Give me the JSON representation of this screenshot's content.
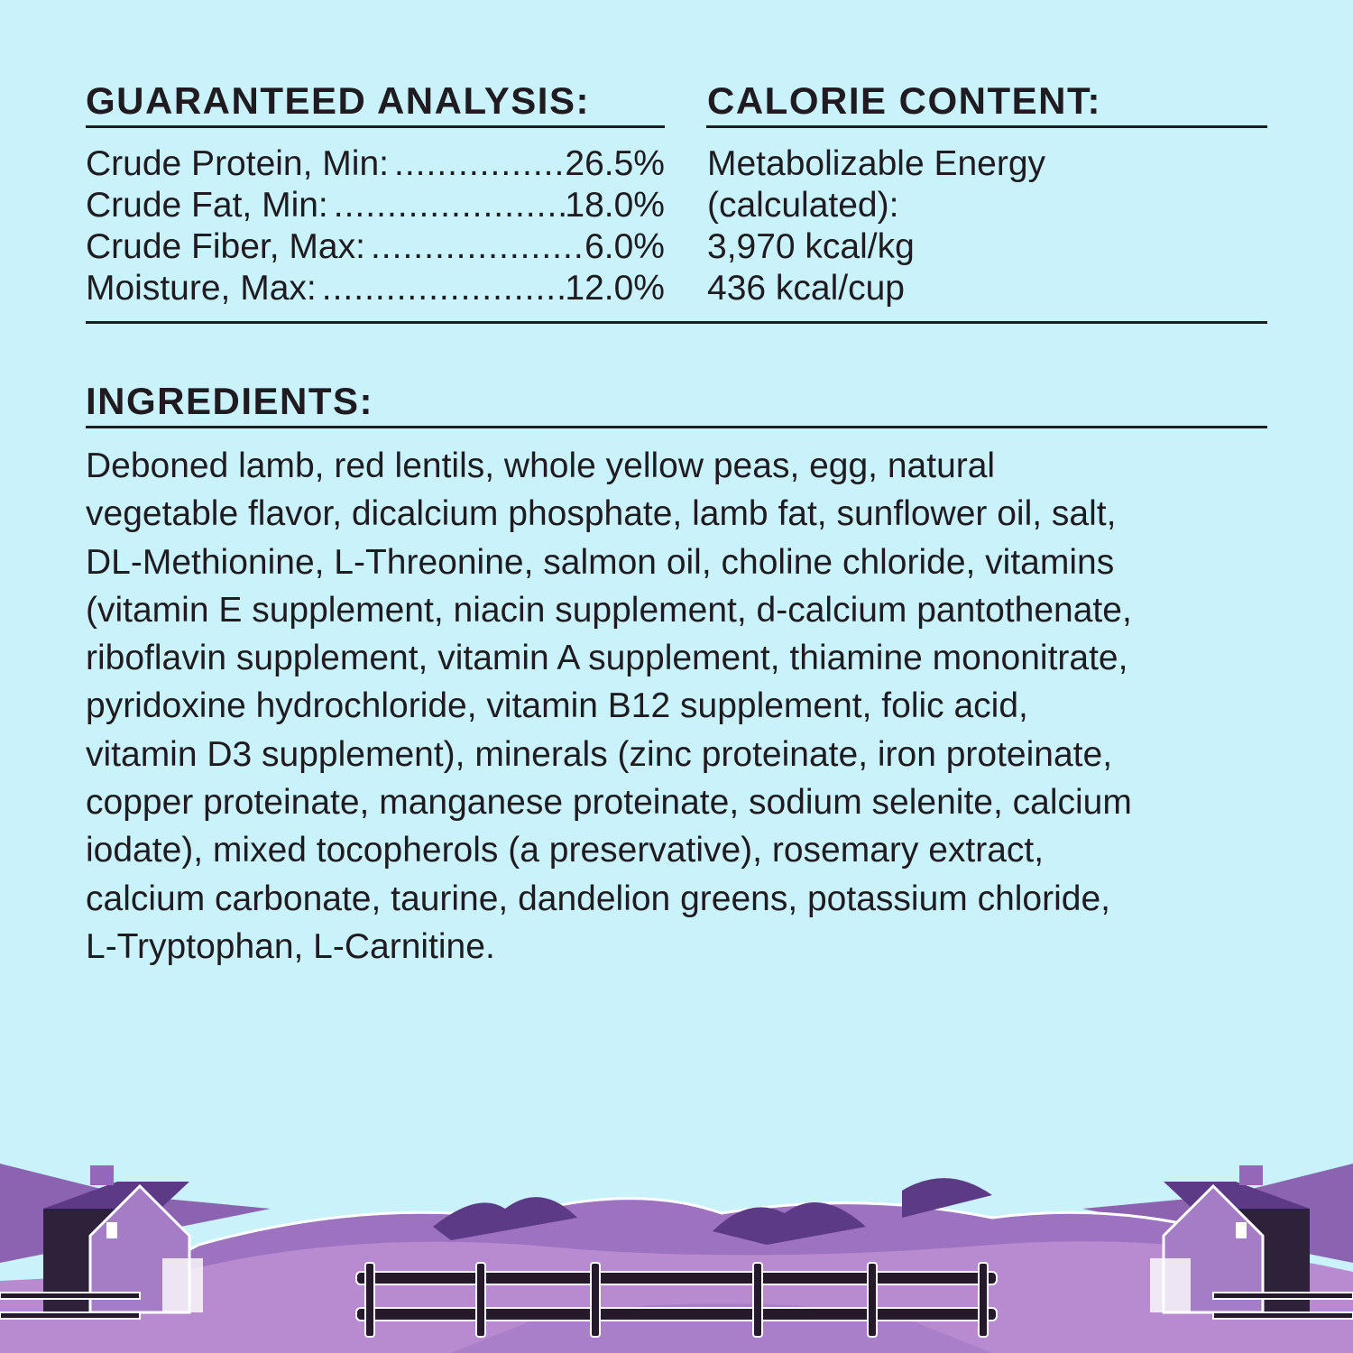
{
  "guaranteed_analysis": {
    "heading": "GUARANTEED ANALYSIS:",
    "rows": [
      {
        "label": "Crude Protein, Min:",
        "value": "26.5%"
      },
      {
        "label": "Crude Fat, Min:",
        "value": "18.0%"
      },
      {
        "label": "Crude Fiber, Max:",
        "value": "6.0%"
      },
      {
        "label": "Moisture, Max:",
        "value": "12.0%"
      }
    ]
  },
  "calorie_content": {
    "heading": "CALORIE CONTENT:",
    "lines": [
      "Metabolizable Energy",
      "(calculated):",
      "3,970 kcal/kg",
      "436 kcal/cup"
    ]
  },
  "ingredients": {
    "heading": "INGREDIENTS:",
    "lines": [
      "Deboned lamb, red lentils, whole yellow peas, egg, natural",
      "vegetable flavor, dicalcium phosphate, lamb fat, sunflower oil, salt,",
      "DL-Methionine, L-Threonine, salmon oil, choline chloride, vitamins",
      "(vitamin E supplement, niacin supplement, d-calcium pantothenate,",
      "riboflavin supplement, vitamin A supplement, thiamine mononitrate,",
      "pyridoxine hydrochloride, vitamin B12 supplement, folic acid,",
      "vitamin D3 supplement), minerals (zinc proteinate, iron proteinate,",
      "copper proteinate, manganese proteinate, sodium selenite, calcium",
      "iodate), mixed tocopherols (a preservative), rosemary extract,",
      "calcium carbonate, taurine, dandelion greens, potassium chloride,",
      "L-Tryptophan, L-Carnitine."
    ]
  },
  "colors": {
    "background": "#c9f2fb",
    "text": "#1f1b21",
    "hill_light": "#b88bd0",
    "hill_mid": "#9467b8",
    "hill_dark": "#5d3a86",
    "fence": "#241a2c"
  }
}
